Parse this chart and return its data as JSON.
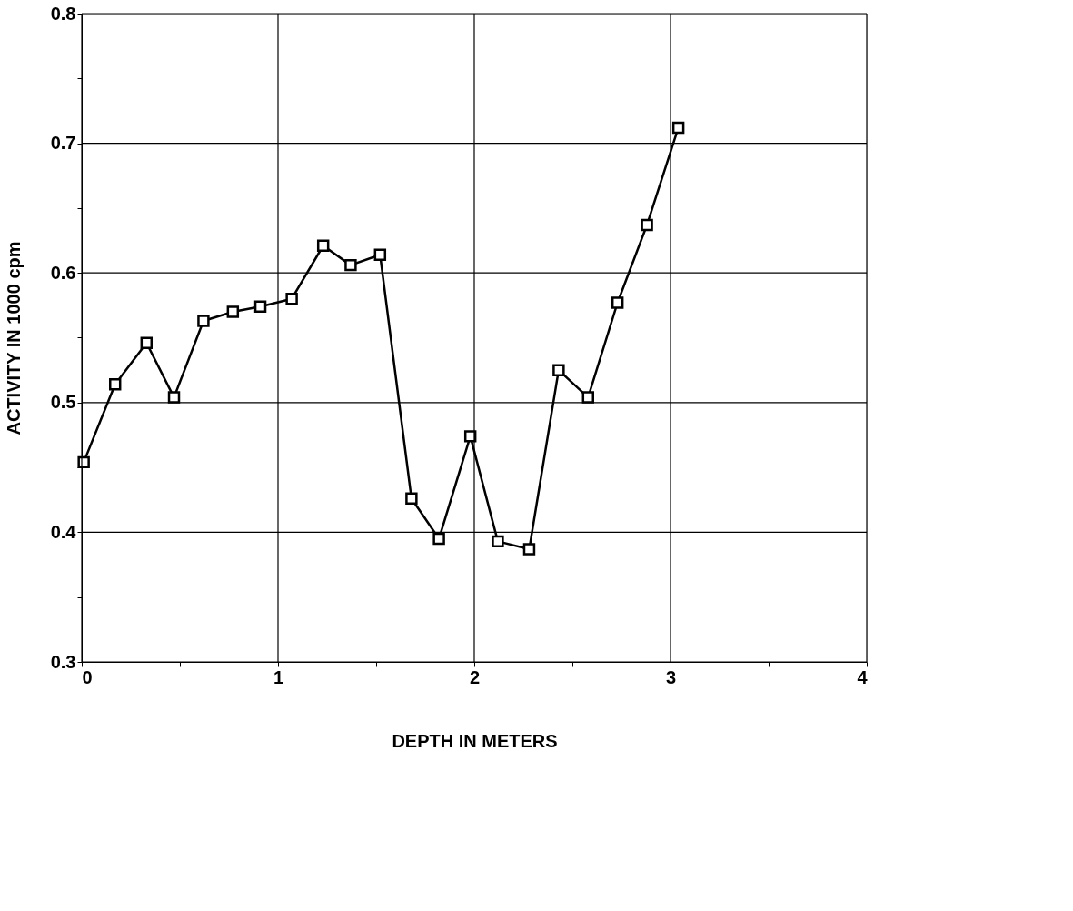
{
  "chart_data": {
    "type": "line",
    "xlabel": "DEPTH IN METERS",
    "ylabel": "ACTIVITY  IN  1000  cpm",
    "x": [
      0.01,
      0.17,
      0.33,
      0.47,
      0.62,
      0.77,
      0.91,
      1.07,
      1.23,
      1.37,
      1.52,
      1.68,
      1.82,
      1.98,
      2.12,
      2.28,
      2.43,
      2.58,
      2.73,
      2.88,
      3.04
    ],
    "series": [
      {
        "color": "#000000",
        "values": [
          0.454,
          0.514,
          0.546,
          0.504,
          0.563,
          0.57,
          0.574,
          0.58,
          0.621,
          0.606,
          0.614,
          0.426,
          0.395,
          0.474,
          0.393,
          0.387,
          0.525,
          0.504,
          0.577,
          0.637,
          0.712
        ]
      }
    ],
    "xlim": [
      0,
      4
    ],
    "ylim": [
      0.3,
      0.8
    ],
    "xticks": [
      0,
      {
        "value": 0.5,
        "label": null
      },
      1,
      {
        "value": 1.5,
        "label": null
      },
      2,
      {
        "value": 2.5,
        "label": null
      },
      3,
      {
        "value": 3.5,
        "label": null
      },
      4
    ],
    "yticks": [
      0.3,
      {
        "value": 0.35,
        "label": null
      },
      0.4,
      {
        "value": 0.45,
        "label": null
      },
      0.5,
      {
        "value": 0.55,
        "label": null
      },
      0.6,
      {
        "value": 0.65,
        "label": null
      },
      0.7,
      {
        "value": 0.75,
        "label": null
      },
      0.8
    ],
    "grid": true,
    "marker": "square",
    "line_style": "solid"
  }
}
